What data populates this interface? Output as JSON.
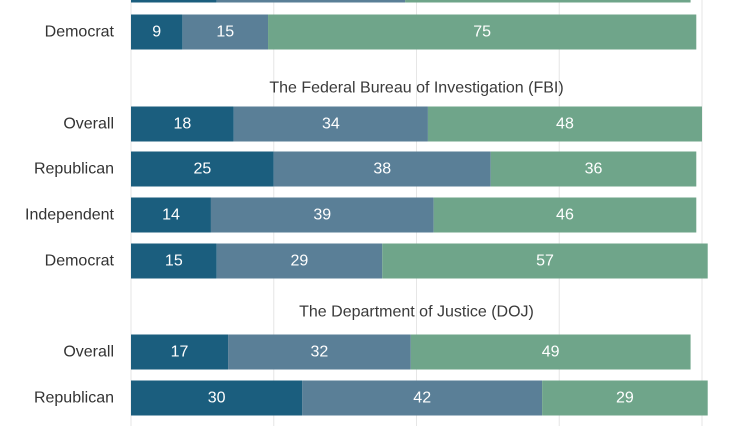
{
  "chart_data": {
    "type": "bar",
    "orientation": "horizontal",
    "stacked": true,
    "xlim": [
      0,
      100
    ],
    "grid": true,
    "series_colors": [
      "#1b5e7e",
      "#5a7f97",
      "#6fa58a"
    ],
    "groups": [
      {
        "title": "",
        "rows": [
          {
            "label": "",
            "values": [
              15,
              33,
              50
            ],
            "show_labels": false
          },
          {
            "label": "Democrat",
            "values": [
              9,
              15,
              75
            ]
          }
        ]
      },
      {
        "title": "The Federal Bureau of Investigation (FBI)",
        "rows": [
          {
            "label": "Overall",
            "values": [
              18,
              34,
              48
            ]
          },
          {
            "label": "Republican",
            "values": [
              25,
              38,
              36
            ]
          },
          {
            "label": "Independent",
            "values": [
              14,
              39,
              46
            ]
          },
          {
            "label": "Democrat",
            "values": [
              15,
              29,
              57
            ]
          }
        ]
      },
      {
        "title": "The Department of Justice (DOJ)",
        "rows": [
          {
            "label": "Overall",
            "values": [
              17,
              32,
              49
            ]
          },
          {
            "label": "Republican",
            "values": [
              30,
              42,
              29
            ]
          }
        ]
      }
    ]
  }
}
